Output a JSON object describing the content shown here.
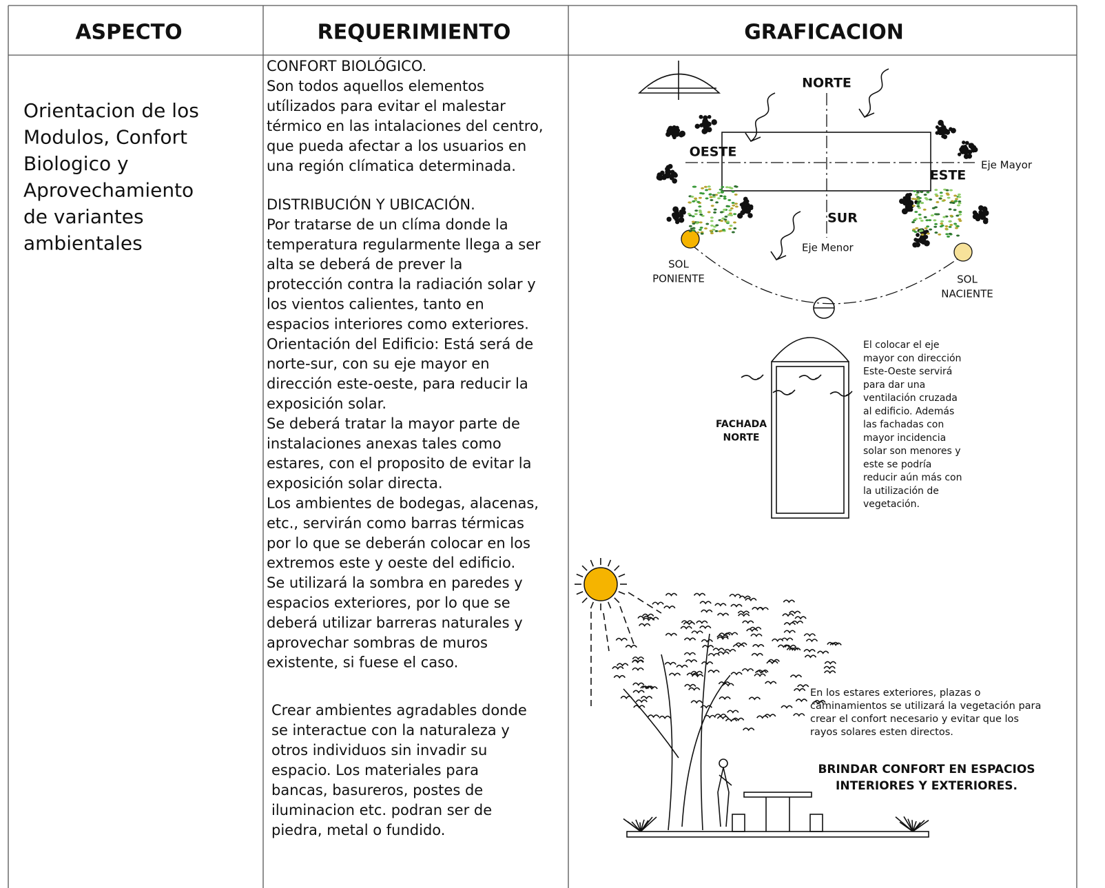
{
  "table": {
    "headers": [
      "ASPECTO",
      "REQUERIMIENTO",
      "GRAFICACION"
    ],
    "aspecto": [
      "Orientacion de los",
      "Modulos, Confort",
      "Biologico y",
      "Aprovechamiento",
      "de variantes",
      "ambientales"
    ],
    "requerimiento": [
      [
        "CONFORT BIOLÓGICO.",
        "Son todos aquellos elementos",
        "utílizados para evitar el malestar",
        "térmico en las intalaciones del centro,",
        "que pueda afectar a los usuarios en",
        "una región clímatica determinada."
      ],
      [
        "DISTRIBUCIÓN Y UBICACIÓN.",
        "Por tratarse de un clíma donde la",
        "temperatura regularmente llega a ser",
        "alta se deberá de prever la",
        "protección contra la radiación solar y",
        "los vientos calientes, tanto en",
        "espacios interiores como exteriores.",
        "Orientación del Edificio: Está será de",
        "norte-sur, con su eje mayor en",
        "dirección este-oeste, para reducir la",
        "exposición solar.",
        "Se deberá tratar la mayor parte de",
        "instalaciones anexas tales como",
        "estares, con el proposito de evitar la",
        "exposición solar directa.",
        "Los ambientes de bodegas, alacenas,",
        "etc., servirán como barras térmicas",
        "por lo que se deberán colocar en los",
        "extremos este y oeste del edificio.",
        "Se utilizará la sombra en paredes y",
        "espacios exteriores, por lo que se",
        "deberá utilizar barreras naturales y",
        "aprovechar sombras de muros",
        "existente, si fuese el caso."
      ],
      [
        "Crear ambientes agradables donde",
        "se interactue con la naturaleza y",
        "otros individuos sin invadir su",
        "espacio.  Los materiales para",
        "bancas, basureros, postes de",
        "iluminacion etc. podran ser de",
        "piedra, metal o fundido."
      ]
    ]
  },
  "graphic": {
    "north": "NORTE",
    "west": "OESTE",
    "east": "ESTE",
    "south": "SUR",
    "major_axis": "Eje Mayor",
    "minor_axis": "Eje Menor",
    "sunset": [
      "SOL",
      "PONIENTE"
    ],
    "sunrise": [
      "SOL",
      "NACIENTE"
    ],
    "facade": [
      "FACHADA",
      "NORTE"
    ],
    "ventilation_note": [
      "El colocar el eje",
      "mayor con dirección",
      "Este-Oeste servirá",
      "para dar una",
      "ventilación cruzada",
      "al edificio.  Además",
      "las fachadas con",
      "mayor incidencia",
      "solar son menores y",
      "este se podría",
      "reducir aún más con",
      "la utilización de",
      "vegetación."
    ],
    "vegetation_note": [
      "En los estares exteriores, plazas o",
      "caminamientos se utilizará la vegetación para",
      "crear el confort necesario y evitar que los",
      "rayos solares esten directos."
    ],
    "title": [
      "BRINDAR CONFORT EN ESPACIOS",
      "INTERIORES Y EXTERIORES."
    ]
  }
}
